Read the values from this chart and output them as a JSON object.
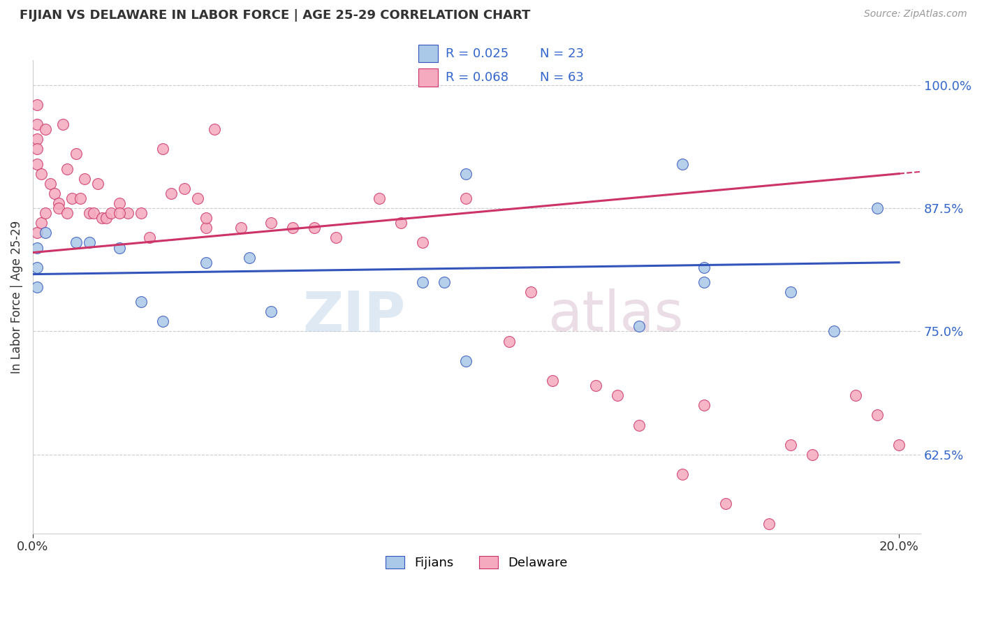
{
  "title": "FIJIAN VS DELAWARE IN LABOR FORCE | AGE 25-29 CORRELATION CHART",
  "source": "Source: ZipAtlas.com",
  "ylabel": "In Labor Force | Age 25-29",
  "xmin": 0.0,
  "xmax": 0.2,
  "ymin": 0.545,
  "ymax": 1.025,
  "yticks": [
    0.625,
    0.75,
    0.875,
    1.0
  ],
  "yticklabels": [
    "62.5%",
    "75.0%",
    "87.5%",
    "100.0%"
  ],
  "xticks": [
    0.0,
    0.2
  ],
  "xticklabels": [
    "0.0%",
    "20.0%"
  ],
  "legend_r1": "R = 0.025",
  "legend_n1": "N = 23",
  "legend_r2": "R = 0.068",
  "legend_n2": "N = 63",
  "legend_label1": "Fijians",
  "legend_label2": "Delaware",
  "fijian_color": "#aac8e8",
  "delaware_color": "#f5aabf",
  "fijian_line_color": "#3355bb",
  "delaware_line_color": "#cc3366",
  "fijian_x": [
    0.001,
    0.001,
    0.001,
    0.003,
    0.01,
    0.013,
    0.02,
    0.025,
    0.03,
    0.04,
    0.05,
    0.055,
    0.09,
    0.095,
    0.1,
    0.14,
    0.155,
    0.155,
    0.175,
    0.185,
    0.195,
    0.1,
    0.15
  ],
  "fijian_y": [
    0.835,
    0.815,
    0.795,
    0.85,
    0.84,
    0.84,
    0.835,
    0.78,
    0.76,
    0.82,
    0.825,
    0.77,
    0.8,
    0.8,
    0.72,
    0.755,
    0.815,
    0.8,
    0.79,
    0.75,
    0.875,
    0.91,
    0.92
  ],
  "delaware_x": [
    0.001,
    0.001,
    0.001,
    0.001,
    0.001,
    0.002,
    0.003,
    0.004,
    0.005,
    0.006,
    0.007,
    0.008,
    0.009,
    0.01,
    0.011,
    0.012,
    0.013,
    0.014,
    0.015,
    0.016,
    0.017,
    0.018,
    0.02,
    0.022,
    0.025,
    0.027,
    0.03,
    0.032,
    0.035,
    0.038,
    0.04,
    0.042,
    0.048,
    0.055,
    0.065,
    0.07,
    0.08,
    0.085,
    0.09,
    0.1,
    0.11,
    0.115,
    0.12,
    0.13,
    0.135,
    0.14,
    0.15,
    0.155,
    0.16,
    0.17,
    0.175,
    0.18,
    0.19,
    0.195,
    0.2,
    0.001,
    0.002,
    0.003,
    0.006,
    0.008,
    0.02,
    0.04,
    0.06
  ],
  "delaware_y": [
    0.98,
    0.96,
    0.945,
    0.935,
    0.92,
    0.91,
    0.955,
    0.9,
    0.89,
    0.88,
    0.96,
    0.915,
    0.885,
    0.93,
    0.885,
    0.905,
    0.87,
    0.87,
    0.9,
    0.865,
    0.865,
    0.87,
    0.88,
    0.87,
    0.87,
    0.845,
    0.935,
    0.89,
    0.895,
    0.885,
    0.855,
    0.955,
    0.855,
    0.86,
    0.855,
    0.845,
    0.885,
    0.86,
    0.84,
    0.885,
    0.74,
    0.79,
    0.7,
    0.695,
    0.685,
    0.655,
    0.605,
    0.675,
    0.575,
    0.555,
    0.635,
    0.625,
    0.685,
    0.665,
    0.635,
    0.85,
    0.86,
    0.87,
    0.875,
    0.87,
    0.87,
    0.865,
    0.855
  ]
}
